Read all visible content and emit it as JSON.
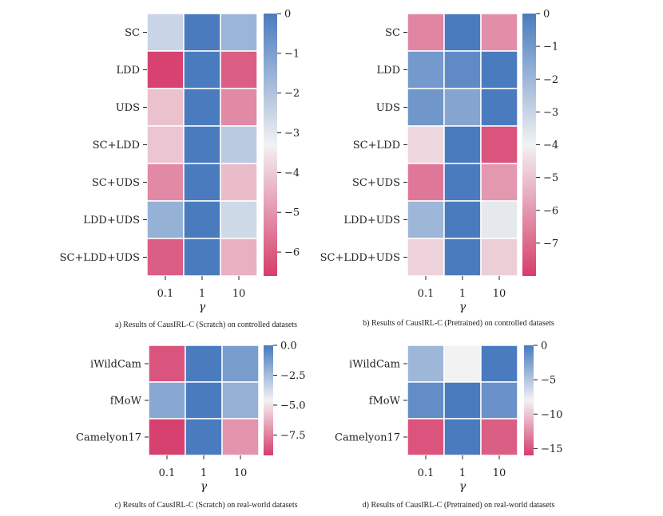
{
  "colors": {
    "low": "#d63d6c",
    "mid": "#f2f2f2",
    "high": "#4a7bbf"
  },
  "chart_data": [
    {
      "type": "heatmap",
      "caption": "a) Results of CausIRL-C (Scratch) on controlled datasets",
      "xlabel": "γ",
      "x_categories": [
        "0.1",
        "1",
        "10"
      ],
      "y_categories": [
        "SC",
        "LDD",
        "UDS",
        "SC+LDD",
        "SC+UDS",
        "LDD+UDS",
        "SC+LDD+UDS"
      ],
      "values": [
        [
          -2.5,
          0.0,
          -1.6
        ],
        [
          -6.5,
          0.0,
          -6.0
        ],
        [
          -4.2,
          0.0,
          -5.2
        ],
        [
          -4.1,
          0.0,
          -2.2
        ],
        [
          -5.2,
          0.0,
          -4.3
        ],
        [
          -1.5,
          0.0,
          -2.6
        ],
        [
          -6.0,
          0.0,
          -4.5
        ]
      ],
      "colorbar": {
        "min": -6.6,
        "max": 0,
        "ticks": [
          "0",
          "−1",
          "−2",
          "−3",
          "−4",
          "−5",
          "−6"
        ],
        "tick_values": [
          0,
          -1,
          -2,
          -3,
          -4,
          -5,
          -6
        ]
      }
    },
    {
      "type": "heatmap",
      "caption": "b) Results of CausIRL-C (Pretrained) on controlled datasets",
      "xlabel": "γ",
      "x_categories": [
        "0.1",
        "1",
        "10"
      ],
      "y_categories": [
        "SC",
        "LDD",
        "UDS",
        "SC+LDD",
        "SC+UDS",
        "LDD+UDS",
        "SC+LDD+UDS"
      ],
      "values": [
        [
          -6.4,
          0.0,
          -6.2
        ],
        [
          -1.0,
          -0.5,
          0.0
        ],
        [
          -0.9,
          -1.4,
          0.0
        ],
        [
          -4.6,
          0.0,
          -7.5
        ],
        [
          -6.7,
          0.0,
          -6.0
        ],
        [
          -2.0,
          0.0,
          -3.7
        ],
        [
          -4.7,
          0.0,
          -4.8
        ]
      ],
      "colorbar": {
        "min": -8.0,
        "max": 0,
        "ticks": [
          "0",
          "−1",
          "−2",
          "−3",
          "−4",
          "−5",
          "−6",
          "−7"
        ],
        "tick_values": [
          0,
          -1,
          -2,
          -3,
          -4,
          -5,
          -6,
          -7
        ]
      }
    },
    {
      "type": "heatmap",
      "caption": "c) Results of CausIRL-C (Scratch) on real-world datasets",
      "xlabel": "γ",
      "x_categories": [
        "0.1",
        "1",
        "10"
      ],
      "y_categories": [
        "iWildCam",
        "fMoW",
        "Camelyon17"
      ],
      "values": [
        [
          -8.6,
          0.0,
          -1.3
        ],
        [
          -1.7,
          0.0,
          -2.1
        ],
        [
          -9.1,
          0.0,
          -7.0
        ]
      ],
      "colorbar": {
        "min": -9.2,
        "max": 0,
        "ticks": [
          "0.0",
          "−2.5",
          "−5.0",
          "−7.5"
        ],
        "tick_values": [
          0,
          -2.5,
          -5,
          -7.5
        ]
      }
    },
    {
      "type": "heatmap",
      "caption": "d) Results of CausIRL-C (Pretrained) on real-world datasets",
      "xlabel": "γ",
      "x_categories": [
        "0.1",
        "1",
        "10"
      ],
      "y_categories": [
        "iWildCam",
        "fMoW",
        "Camelyon17"
      ],
      "values": [
        [
          -4.0,
          -8.0,
          0.0
        ],
        [
          -1.2,
          0.0,
          -1.5
        ],
        [
          -15.0,
          0.0,
          -14.5
        ]
      ],
      "colorbar": {
        "min": -16.0,
        "max": 0,
        "ticks": [
          "0",
          "−5",
          "−10",
          "−15"
        ],
        "tick_values": [
          0,
          -5,
          -10,
          -15
        ]
      }
    }
  ]
}
